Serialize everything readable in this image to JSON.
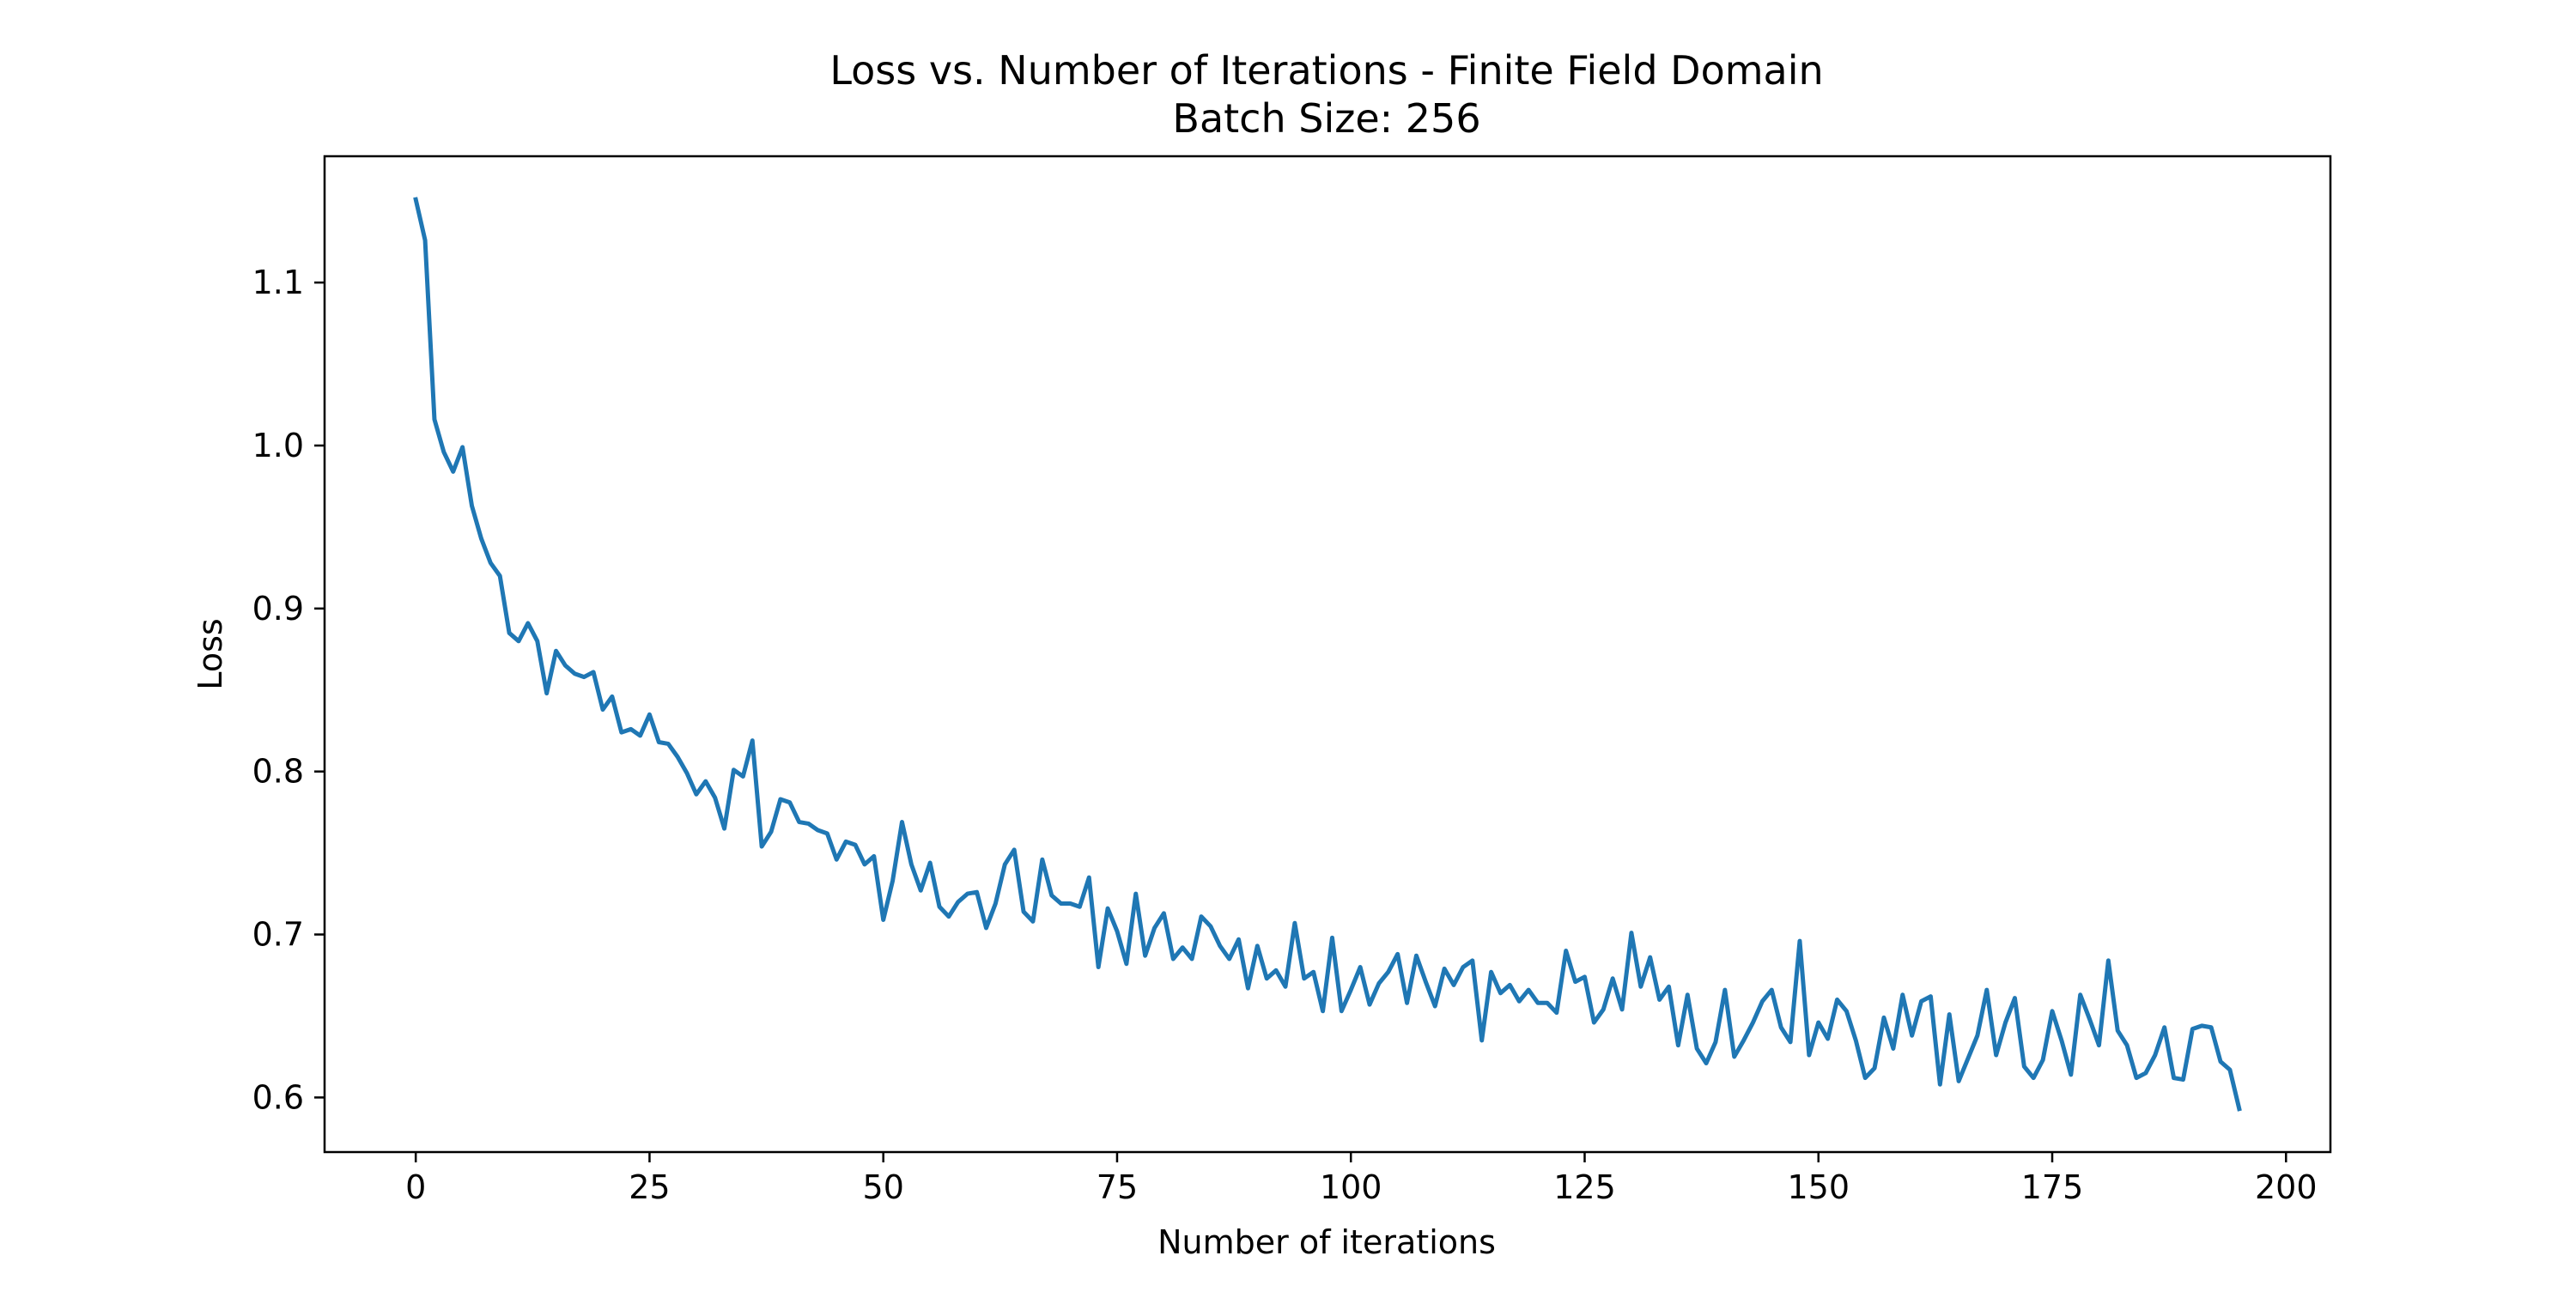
{
  "chart_data": {
    "type": "line",
    "title": "Loss vs. Number of Iterations - Finite Field Domain",
    "subtitle": "Batch Size: 256",
    "xlabel": "Number of iterations",
    "ylabel": "Loss",
    "xlim": [
      -9.75,
      204.75
    ],
    "ylim": [
      0.5665,
      1.1775
    ],
    "x_ticks": [
      0,
      25,
      50,
      75,
      100,
      125,
      150,
      175,
      200
    ],
    "y_ticks": [
      0.6,
      0.7,
      0.8,
      0.9,
      1.0,
      1.1
    ],
    "x_tick_labels": [
      "0",
      "25",
      "50",
      "75",
      "100",
      "125",
      "150",
      "175",
      "200"
    ],
    "y_tick_labels": [
      "0.6",
      "0.7",
      "0.8",
      "0.9",
      "1.0",
      "1.1"
    ],
    "grid": false,
    "series": [
      {
        "color": "#1f77b4",
        "x_start": 0,
        "x_step": 1,
        "values": [
          1.151,
          1.126,
          1.016,
          0.996,
          0.984,
          0.999,
          0.963,
          0.943,
          0.928,
          0.92,
          0.885,
          0.88,
          0.891,
          0.88,
          0.848,
          0.874,
          0.865,
          0.86,
          0.858,
          0.861,
          0.838,
          0.846,
          0.824,
          0.826,
          0.822,
          0.835,
          0.818,
          0.817,
          0.809,
          0.799,
          0.786,
          0.794,
          0.784,
          0.765,
          0.801,
          0.797,
          0.819,
          0.754,
          0.763,
          0.783,
          0.781,
          0.769,
          0.768,
          0.764,
          0.762,
          0.746,
          0.757,
          0.755,
          0.743,
          0.748,
          0.709,
          0.733,
          0.769,
          0.743,
          0.727,
          0.744,
          0.717,
          0.711,
          0.72,
          0.725,
          0.726,
          0.704,
          0.719,
          0.743,
          0.752,
          0.714,
          0.708,
          0.746,
          0.724,
          0.719,
          0.719,
          0.717,
          0.735,
          0.68,
          0.716,
          0.702,
          0.682,
          0.725,
          0.687,
          0.704,
          0.713,
          0.685,
          0.692,
          0.685,
          0.711,
          0.705,
          0.693,
          0.685,
          0.697,
          0.667,
          0.693,
          0.673,
          0.678,
          0.668,
          0.707,
          0.673,
          0.677,
          0.653,
          0.698,
          0.653,
          0.666,
          0.68,
          0.657,
          0.67,
          0.677,
          0.688,
          0.658,
          0.687,
          0.671,
          0.656,
          0.679,
          0.669,
          0.68,
          0.684,
          0.635,
          0.677,
          0.664,
          0.669,
          0.659,
          0.666,
          0.658,
          0.658,
          0.652,
          0.69,
          0.671,
          0.674,
          0.646,
          0.654,
          0.673,
          0.654,
          0.701,
          0.668,
          0.686,
          0.66,
          0.668,
          0.632,
          0.663,
          0.63,
          0.621,
          0.634,
          0.666,
          0.625,
          0.635,
          0.646,
          0.659,
          0.666,
          0.643,
          0.634,
          0.696,
          0.626,
          0.646,
          0.636,
          0.66,
          0.653,
          0.635,
          0.612,
          0.618,
          0.649,
          0.63,
          0.663,
          0.638,
          0.659,
          0.662,
          0.608,
          0.651,
          0.61,
          0.624,
          0.638,
          0.666,
          0.626,
          0.646,
          0.661,
          0.619,
          0.612,
          0.623,
          0.653,
          0.635,
          0.614,
          0.663,
          0.648,
          0.632,
          0.684,
          0.641,
          0.632,
          0.612,
          0.615,
          0.626,
          0.643,
          0.612,
          0.611,
          0.642,
          0.644,
          0.643,
          0.622,
          0.617,
          0.593
        ]
      }
    ]
  }
}
